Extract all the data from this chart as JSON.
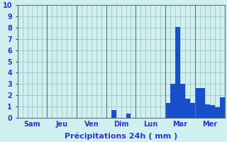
{
  "title": "Précipitations 24h ( mm )",
  "background_color": "#d0f0f0",
  "bar_color": "#1a4fcc",
  "grid_color": "#99bbbb",
  "text_color": "#3333cc",
  "ylim": [
    0,
    10
  ],
  "yticks": [
    0,
    1,
    2,
    3,
    4,
    5,
    6,
    7,
    8,
    9,
    10
  ],
  "day_labels": [
    "Sam",
    "Jeu",
    "Ven",
    "Dim",
    "Lun",
    "Mar",
    "Mer"
  ],
  "bar_vals": [
    0,
    0,
    0,
    0,
    0,
    0,
    0,
    0,
    0,
    0,
    0,
    0,
    0,
    0,
    0,
    0,
    0,
    0,
    0,
    0.7,
    0,
    0,
    0.35,
    0,
    0,
    0,
    0,
    0,
    0,
    0,
    1.3,
    3.0,
    8.1,
    3.0,
    1.7,
    1.3,
    2.6,
    2.6,
    1.2,
    1.1,
    0.9,
    1.8
  ],
  "bars_per_day": 6,
  "n_days": 7,
  "divider_color": "#557777",
  "spine_color": "#557777",
  "xlabel_fontsize": 8,
  "ytick_fontsize": 7,
  "xtick_fontsize": 7
}
